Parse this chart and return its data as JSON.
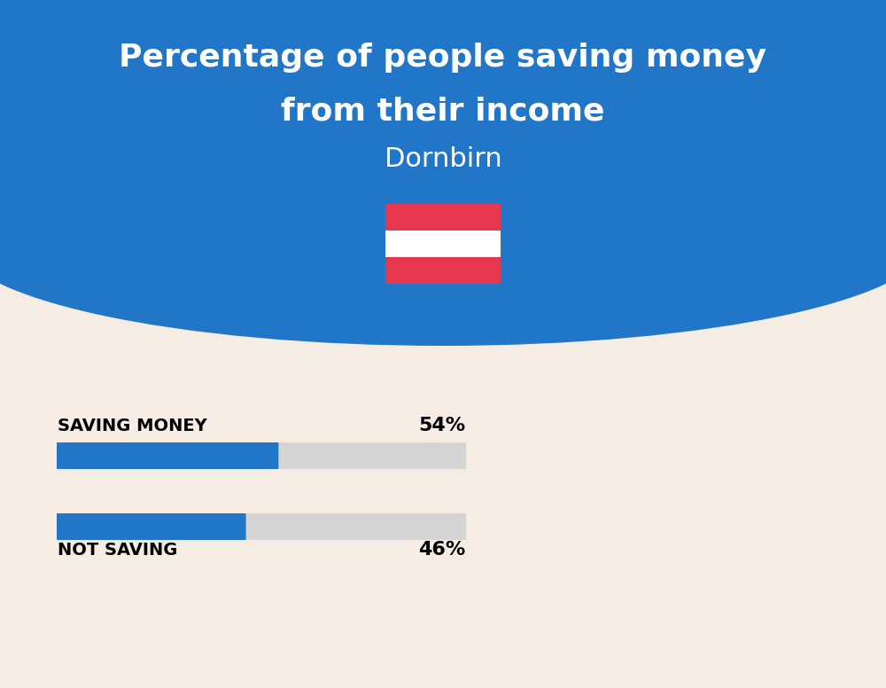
{
  "title_line1": "Percentage of people saving money",
  "title_line2": "from their income",
  "subtitle": "Dornbirn",
  "bg_color": "#f5ede3",
  "header_bg_color": "#2176c7",
  "bar_blue": "#2176c7",
  "bar_gray": "#d5d5d5",
  "saving_label": "SAVING MONEY",
  "saving_pct": 54,
  "saving_pct_label": "54%",
  "not_saving_label": "NOT SAVING",
  "not_saving_pct": 46,
  "not_saving_pct_label": "46%",
  "label_fontsize": 14,
  "pct_fontsize": 16,
  "title_fontsize": 26,
  "subtitle_fontsize": 22,
  "fig_width": 10.0,
  "fig_height": 7.76
}
